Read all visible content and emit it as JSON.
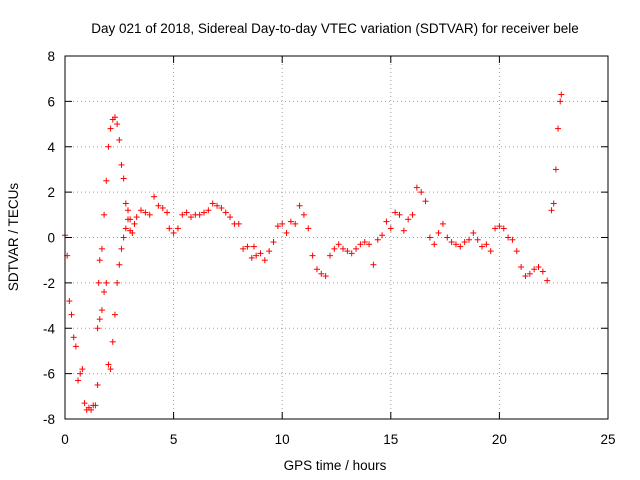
{
  "chart_data": {
    "type": "scatter",
    "title": "Day 021 of 2018, Sidereal Day-to-day VTEC variation (SDTVAR) for receiver bele",
    "xlabel": "GPS time / hours",
    "ylabel": "SDTVAR / TECUs",
    "xlim": [
      0,
      25
    ],
    "ylim": [
      -8,
      8
    ],
    "xticks": [
      0,
      5,
      10,
      15,
      20,
      25
    ],
    "yticks": [
      -8,
      -6,
      -4,
      -2,
      0,
      2,
      4,
      6,
      8
    ],
    "xtick_labels": [
      "0",
      "5",
      "10",
      "15",
      "20",
      "25"
    ],
    "ytick_labels": [
      "-8",
      "-6",
      "-4",
      "-2",
      "0",
      "2",
      "4",
      "6",
      "8"
    ],
    "grid": true,
    "marker": "+",
    "color": "#ff0000",
    "series": [
      {
        "name": "SDTVAR",
        "x": [
          0.0,
          0.1,
          0.2,
          0.3,
          0.4,
          0.5,
          0.6,
          0.7,
          0.8,
          0.9,
          1.0,
          1.1,
          1.2,
          1.3,
          1.4,
          1.5,
          1.55,
          1.6,
          1.7,
          1.8,
          1.9,
          2.0,
          2.1,
          2.2,
          2.3,
          2.4,
          2.5,
          2.6,
          2.7,
          2.8,
          2.9,
          3.0,
          1.5,
          1.6,
          1.7,
          1.8,
          1.9,
          2.0,
          2.1,
          2.2,
          2.3,
          2.4,
          2.5,
          2.6,
          2.7,
          2.8,
          2.9,
          3.0,
          3.1,
          3.2,
          3.3,
          3.5,
          3.7,
          3.9,
          4.1,
          4.3,
          4.5,
          4.7,
          4.8,
          5.0,
          5.2,
          5.4,
          5.6,
          5.8,
          6.0,
          6.2,
          6.4,
          6.6,
          6.8,
          7.0,
          7.2,
          7.4,
          7.6,
          7.8,
          8.0,
          8.2,
          8.4,
          8.6,
          8.7,
          8.8,
          9.0,
          9.2,
          9.4,
          9.6,
          9.8,
          10.0,
          10.2,
          10.4,
          10.6,
          10.8,
          11.0,
          11.2,
          11.4,
          11.6,
          11.8,
          12.0,
          12.2,
          12.4,
          12.6,
          12.8,
          13.0,
          13.2,
          13.4,
          13.6,
          13.8,
          14.0,
          14.2,
          14.4,
          14.6,
          14.8,
          15.0,
          15.2,
          15.4,
          15.6,
          15.8,
          16.0,
          16.2,
          16.4,
          16.6,
          16.8,
          17.0,
          17.2,
          17.4,
          17.6,
          17.8,
          18.0,
          18.2,
          18.4,
          18.6,
          18.8,
          19.0,
          19.2,
          19.4,
          19.6,
          19.8,
          20.0,
          20.2,
          20.4,
          20.6,
          20.8,
          21.0,
          21.2,
          21.4,
          21.6,
          21.8,
          22.0,
          22.2,
          22.4,
          22.5,
          22.6,
          22.7,
          22.8,
          22.85
        ],
        "y": [
          0.1,
          -0.8,
          -2.8,
          -3.4,
          -4.4,
          -4.8,
          -6.3,
          -6.0,
          -5.8,
          -7.3,
          -7.6,
          -7.5,
          -7.6,
          -7.4,
          -7.4,
          -6.5,
          -2.0,
          -1.0,
          -0.5,
          1.0,
          2.5,
          4.0,
          4.8,
          5.2,
          5.3,
          5.0,
          4.3,
          3.2,
          2.6,
          1.5,
          1.2,
          0.3,
          -4.0,
          -3.6,
          -3.2,
          -2.4,
          -2.0,
          -5.6,
          -5.8,
          -4.6,
          -3.4,
          -2.0,
          -1.2,
          -0.5,
          0.0,
          0.4,
          0.8,
          0.8,
          0.2,
          0.6,
          0.9,
          1.2,
          1.1,
          1.0,
          1.8,
          1.4,
          1.3,
          1.1,
          0.4,
          0.2,
          0.4,
          1.0,
          1.1,
          0.9,
          1.0,
          1.0,
          1.1,
          1.2,
          1.5,
          1.4,
          1.3,
          1.1,
          0.9,
          0.6,
          0.6,
          -0.5,
          -0.4,
          -0.9,
          -0.4,
          -0.8,
          -0.7,
          -1.0,
          -0.6,
          -0.2,
          0.5,
          0.6,
          0.2,
          0.7,
          0.6,
          1.4,
          1.0,
          0.4,
          -0.8,
          -1.4,
          -1.6,
          -1.7,
          -0.8,
          -0.5,
          -0.3,
          -0.5,
          -0.6,
          -0.7,
          -0.5,
          -0.3,
          -0.2,
          -0.3,
          -1.2,
          -0.1,
          0.1,
          0.7,
          0.4,
          1.1,
          1.0,
          0.3,
          0.8,
          1.0,
          2.2,
          2.0,
          1.6,
          0.0,
          -0.3,
          0.2,
          0.6,
          0.0,
          -0.2,
          -0.3,
          -0.4,
          -0.2,
          -0.1,
          0.2,
          -0.1,
          -0.4,
          -0.3,
          -0.6,
          0.4,
          0.5,
          0.4,
          0.0,
          -0.1,
          -0.6,
          -1.3,
          -1.7,
          -1.6,
          -1.4,
          -1.3,
          -1.5,
          -1.9,
          1.2,
          1.5,
          3.0,
          4.8,
          6.0,
          6.3
        ]
      }
    ]
  }
}
